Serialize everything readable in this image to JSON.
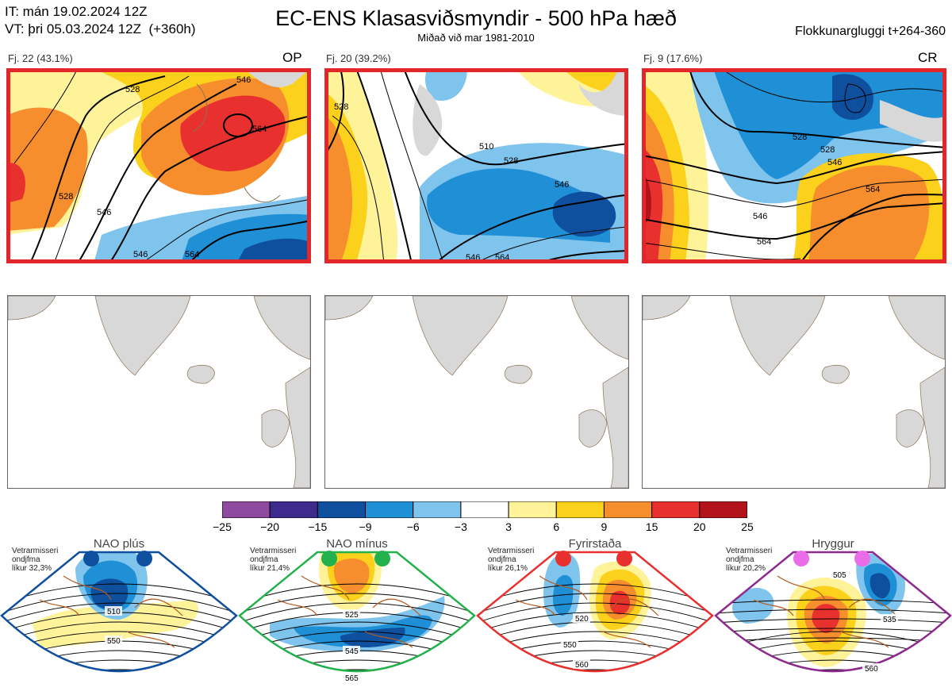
{
  "header": {
    "it_line": "IT: mán 19.02.2024 12Z",
    "vt_line": "VT: þri 05.03.2024 12Z  (+360h)",
    "title": "EC-ENS Klasasviðsmyndir - 500 hPa hæð",
    "subtitle": "Miðað við mar 1981-2010",
    "window": "Flokkunargluggi t+264-360"
  },
  "clusters": [
    {
      "label": "Fj. 22 (43.1%)",
      "code": "OP",
      "contours": [
        "528",
        "546",
        "564",
        "528",
        "546",
        "546",
        "564"
      ]
    },
    {
      "label": "Fj. 20 (39.2%)",
      "code": "",
      "contours": [
        "528",
        "510",
        "528",
        "546",
        "564",
        "546"
      ]
    },
    {
      "label": "Fj. 9 (17.6%)",
      "code": "CR",
      "contours": [
        "528",
        "528",
        "546",
        "564",
        "546",
        "564"
      ]
    }
  ],
  "colorbar": {
    "ticks": [
      "−25",
      "−20",
      "−15",
      "−9",
      "−6",
      "−3",
      "3",
      "6",
      "9",
      "15",
      "20",
      "25"
    ],
    "colors": [
      "#8e4a9e",
      "#3e2b8e",
      "#0e4f9e",
      "#1f8fd6",
      "#7fc4ec",
      "#ffffff",
      "#fff39a",
      "#fcd11c",
      "#f68e2e",
      "#e8302f",
      "#b3131b"
    ]
  },
  "regimes": [
    {
      "name": "NAO plús",
      "info": [
        "Vetrarmisseri",
        "ondjfma",
        "líkur 32,3%"
      ],
      "dot_color": "#0e4f9e",
      "border_color": "#0e4f9e",
      "contours": [
        "510",
        "550"
      ]
    },
    {
      "name": "NAO mínus",
      "info": [
        "Vetrarmisseri",
        "ondjfma",
        "líkur 21,4%"
      ],
      "dot_color": "#22b14c",
      "border_color": "#22b14c",
      "contours": [
        "525",
        "545",
        "565"
      ]
    },
    {
      "name": "Fyrirstaða",
      "info": [
        "Vetrarmisseri",
        "ondjfma",
        "líkur 26,1%"
      ],
      "dot_color": "#e8302f",
      "border_color": "#e8302f",
      "contours": [
        "520",
        "550",
        "560"
      ]
    },
    {
      "name": "Hryggur",
      "info": [
        "Vetrarmisseri",
        "ondjfma",
        "líkur 20,2%"
      ],
      "dot_color": "#ea6ce8",
      "border_color": "#8e2a8e",
      "contours": [
        "505",
        "535",
        "560"
      ]
    }
  ]
}
